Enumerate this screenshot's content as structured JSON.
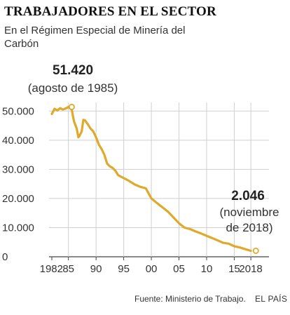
{
  "header": {
    "title": "TRABAJADORES EN EL SECTOR",
    "subtitle": "En el Régimen Especial de Minería del Carbón"
  },
  "footer": {
    "source": "Fuente: Ministerio de Trabajo.",
    "brand": "EL PAÍS"
  },
  "colors": {
    "line": "#E0A92B",
    "grid": "#cfcfcf",
    "axis": "#444444"
  },
  "chart_data": {
    "type": "line",
    "title": "TRABAJADORES EN EL SECTOR",
    "subtitle": "En el Régimen Especial de Minería del Carbón",
    "xlabel": "",
    "ylabel": "",
    "xlim": [
      1982,
      2019
    ],
    "ylim": [
      0,
      52000
    ],
    "grid": "horizontal",
    "y_ticks": [
      0,
      10000,
      20000,
      30000,
      40000,
      50000
    ],
    "y_tick_labels": [
      "0",
      "10.000",
      "20.000",
      "30.000",
      "40.000",
      "50.000"
    ],
    "x_ticks": [
      1982,
      1985,
      1990,
      1995,
      2000,
      2005,
      2010,
      2015,
      2018
    ],
    "x_tick_labels": [
      "1982",
      "85",
      "90",
      "95",
      "00",
      "05",
      "10",
      "15",
      "2018"
    ],
    "series": [
      {
        "x": [
          1982,
          1982.5,
          1983,
          1983.5,
          1984,
          1984.5,
          1985,
          1985.6,
          1986,
          1986.5,
          1986.8,
          1987,
          1987.4,
          1987.7,
          1988,
          1988.5,
          1989,
          1989.5,
          1990,
          1990.5,
          1991,
          1991.5,
          1992,
          1992.5,
          1993,
          1993.5,
          1994,
          1994.5,
          1995,
          1996,
          1997,
          1998,
          1999,
          2000,
          2001,
          2002,
          2003,
          2004,
          2005,
          2006,
          2007,
          2008,
          2009,
          2010,
          2011,
          2012,
          2013,
          2014,
          2015,
          2016,
          2017,
          2018
        ],
        "values": [
          49000,
          50800,
          50200,
          51000,
          50500,
          50900,
          51420,
          50500,
          46500,
          44000,
          41000,
          41500,
          43000,
          47000,
          46800,
          45500,
          44000,
          43000,
          41000,
          38500,
          37000,
          35000,
          32000,
          31000,
          30500,
          29500,
          28000,
          27500,
          27000,
          26000,
          24800,
          24000,
          23500,
          20000,
          18500,
          17000,
          15500,
          13500,
          11500,
          10000,
          9500,
          8700,
          8000,
          7200,
          6400,
          5600,
          4800,
          4500,
          3600,
          3200,
          2600,
          2046
        ]
      }
    ],
    "annotations": [
      {
        "value_text": "51.420",
        "label": "(agosto de 1985)",
        "x": 1985.6,
        "y": 51420
      },
      {
        "value_text": "2.046",
        "label_line1": "(noviembre",
        "label_line2": "de 2018)",
        "x": 2018.9,
        "y": 2046
      }
    ]
  }
}
